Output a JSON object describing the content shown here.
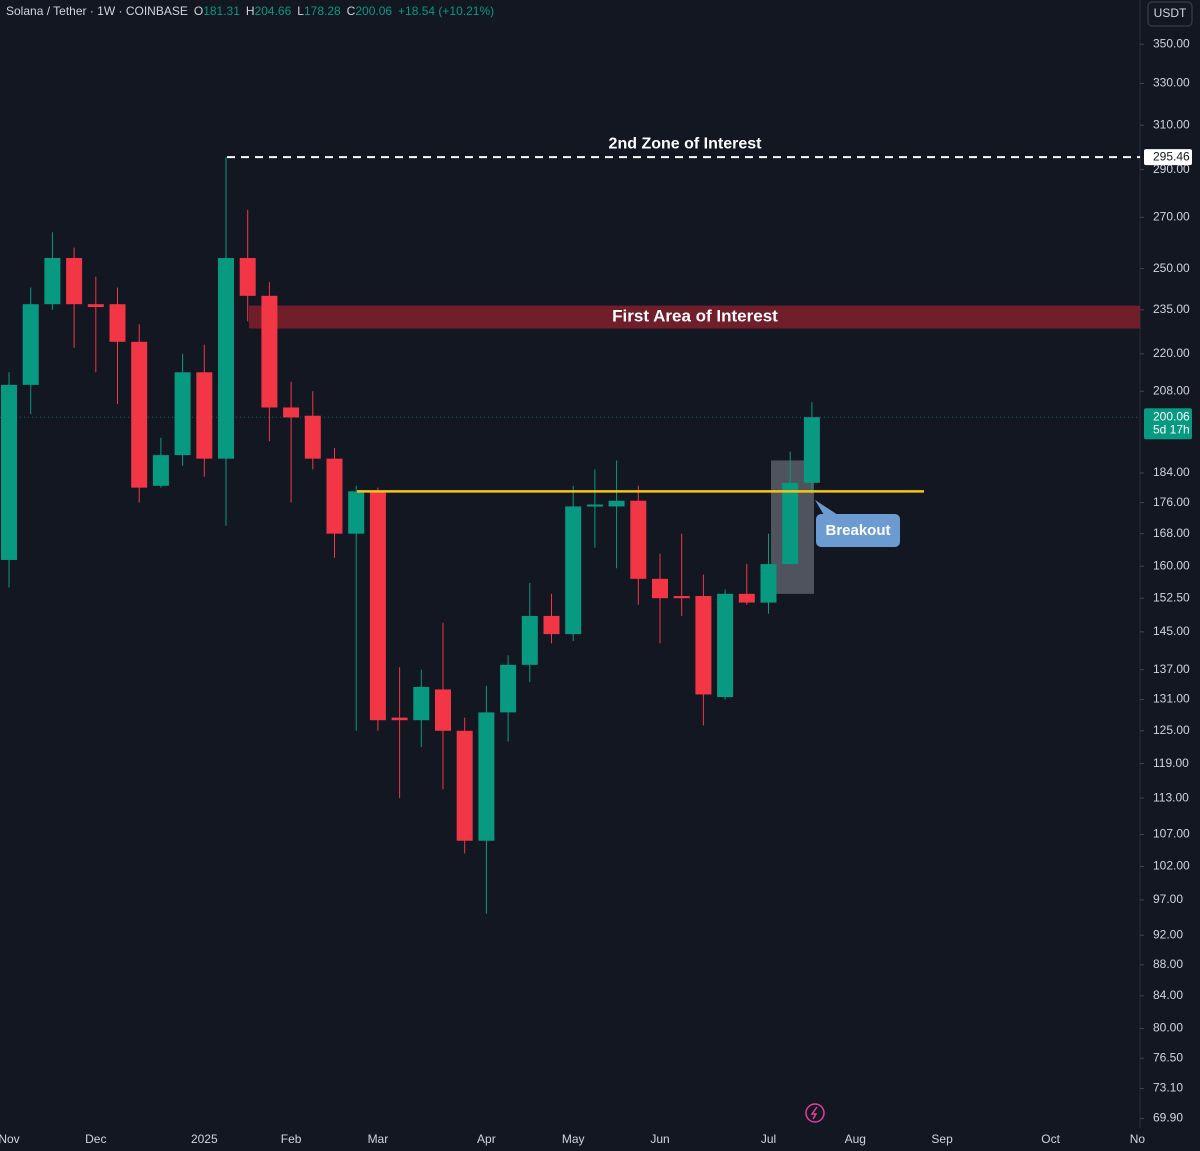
{
  "header": {
    "symbol": "Solana / Tether · 1W · COINBASE",
    "ohlc_labels": [
      "O",
      "H",
      "L",
      "C"
    ],
    "change": "+18.54 (+10.21%)",
    "currency": "USDT",
    "countdown": "5d 17h"
  },
  "chart_data": {
    "type": "candlestick",
    "log_scale": true,
    "grid": false,
    "up_color": "#089981",
    "down_color": "#f23645",
    "categories": [
      "Nov",
      null,
      null,
      null,
      "Dec",
      null,
      null,
      null,
      null,
      "2025",
      null,
      null,
      null,
      "Feb",
      null,
      null,
      null,
      "Mar",
      null,
      null,
      null,
      null,
      "Apr",
      null,
      null,
      null,
      "May",
      null,
      null,
      null,
      "Jun",
      null,
      null,
      null,
      null,
      "Jul",
      null,
      null,
      null,
      "Aug",
      null,
      null,
      null,
      "Sep",
      null,
      null,
      null,
      null,
      "Oct",
      null,
      null,
      null,
      "No"
    ],
    "open": [
      161.5,
      210,
      237,
      254,
      237,
      237,
      224,
      180.5,
      189,
      214,
      188,
      254,
      240,
      203,
      200.5,
      188,
      168,
      179,
      127.5,
      127,
      133,
      125,
      106,
      128.5,
      138,
      148.5,
      144.5,
      175,
      175,
      176.5,
      157,
      153,
      153,
      131.5,
      153.5,
      151.5,
      160.5,
      181.31,
      null,
      null,
      null,
      null,
      null,
      null,
      null,
      null,
      null,
      null,
      null,
      null,
      null,
      null,
      null
    ],
    "high": [
      214,
      243,
      264,
      258,
      247,
      243,
      230,
      194,
      220,
      223,
      295.5,
      273,
      245,
      211,
      208,
      191,
      180.5,
      180,
      137.5,
      137,
      147,
      127.5,
      133.7,
      140,
      156,
      153.5,
      180.5,
      185,
      187.5,
      180.5,
      163,
      168,
      158,
      154.5,
      160.5,
      168,
      190,
      204.66,
      null,
      null,
      null,
      null,
      null,
      null,
      null,
      null,
      null,
      null,
      null,
      null,
      null,
      null,
      null
    ],
    "low": [
      155,
      201,
      235,
      222,
      214,
      204,
      176,
      180,
      186,
      183,
      170,
      231,
      193,
      176,
      185,
      162,
      125,
      125,
      113,
      122,
      114.5,
      104,
      95,
      123,
      134.5,
      142.5,
      143,
      164.5,
      159.5,
      151,
      142.5,
      148.5,
      126,
      131,
      151,
      149,
      160.5,
      178.28,
      null,
      null,
      null,
      null,
      null,
      null,
      null,
      null,
      null,
      null,
      null,
      null,
      null,
      null,
      null
    ],
    "close": [
      210,
      237,
      254,
      237,
      236,
      224,
      180,
      189,
      214,
      188,
      254,
      240,
      203,
      200,
      188,
      168,
      179,
      127,
      127,
      133.5,
      125,
      106,
      128.5,
      138,
      148.5,
      144.5,
      175,
      175.5,
      176.5,
      157,
      152.5,
      152.5,
      132,
      153.5,
      151.5,
      160.5,
      181.31,
      200.06,
      null,
      null,
      null,
      null,
      null,
      null,
      null,
      null,
      null,
      null,
      null,
      null,
      null,
      null,
      null
    ],
    "ylim": [
      68.9,
      374
    ],
    "yticks": [
      {
        "value": 350,
        "label": "350.00"
      },
      {
        "value": 330,
        "label": "330.00"
      },
      {
        "value": 310,
        "label": "310.00"
      },
      {
        "value": 290,
        "label": "290.00"
      },
      {
        "value": 270,
        "label": "270.00"
      },
      {
        "value": 250,
        "label": "250.00"
      },
      {
        "value": 235,
        "label": "235.00"
      },
      {
        "value": 220,
        "label": "220.00"
      },
      {
        "value": 208,
        "label": "208.00"
      },
      {
        "value": 184,
        "label": "184.00"
      },
      {
        "value": 176,
        "label": "176.00"
      },
      {
        "value": 168,
        "label": "168.00"
      },
      {
        "value": 160,
        "label": "160.00"
      },
      {
        "value": 152.5,
        "label": "152.50"
      },
      {
        "value": 145,
        "label": "145.00"
      },
      {
        "value": 137,
        "label": "137.00"
      },
      {
        "value": 131,
        "label": "131.00"
      },
      {
        "value": 125,
        "label": "125.00"
      },
      {
        "value": 119,
        "label": "119.00"
      },
      {
        "value": 113,
        "label": "113.00"
      },
      {
        "value": 107,
        "label": "107.00"
      },
      {
        "value": 102,
        "label": "102.00"
      },
      {
        "value": 97,
        "label": "97.00"
      },
      {
        "value": 92,
        "label": "92.00"
      },
      {
        "value": 88,
        "label": "88.00"
      },
      {
        "value": 84,
        "label": "84.00"
      },
      {
        "value": 80,
        "label": "80.00"
      },
      {
        "value": 76.5,
        "label": "76.50"
      },
      {
        "value": 73.1,
        "label": "73.10"
      },
      {
        "value": 69.9,
        "label": "69.90"
      }
    ],
    "zone_line": {
      "label": "2nd Zone of Interest",
      "value": 295.46
    },
    "area": {
      "label": "First Area of Interest",
      "range": [
        228.5,
        236.5
      ],
      "color": "#7a1f2b"
    },
    "support": {
      "value": 179,
      "color": "#f5c518"
    },
    "breakout": {
      "label": "Breakout",
      "range": [
        153.5,
        187.5
      ],
      "color": "#6c9bd2"
    }
  }
}
